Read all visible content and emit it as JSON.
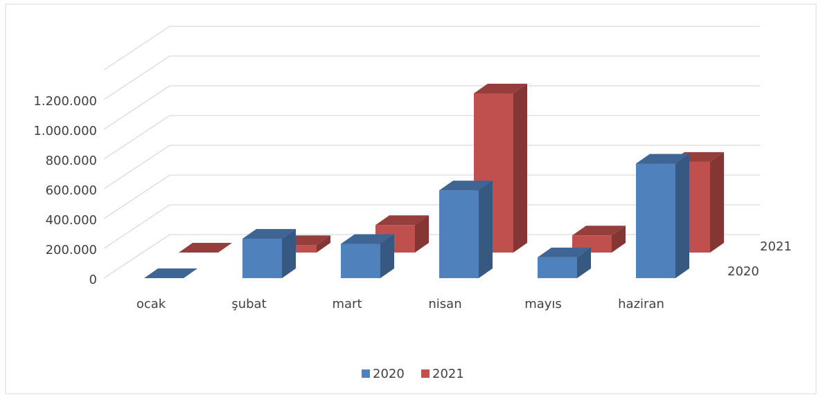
{
  "chart_data": {
    "type": "bar3d",
    "categories": [
      "ocak",
      "şubat",
      "mart",
      "nisan",
      "mayıs",
      "haziran"
    ],
    "series": [
      {
        "name": "2020",
        "color": "#4f81bd",
        "values": [
          0,
          265000,
          230000,
          590000,
          140000,
          770000
        ]
      },
      {
        "name": "2021",
        "color": "#c0504d",
        "values": [
          0,
          50000,
          185000,
          1070000,
          115000,
          610000
        ]
      }
    ],
    "ylim": [
      0,
      1400000
    ],
    "yticks": [
      0,
      {
        "value": 200000,
        "label": "200.000"
      },
      {
        "value": 400000,
        "label": "400.000"
      },
      {
        "value": 600000,
        "label": "600.000"
      },
      {
        "value": 800000,
        "label": "800.000"
      },
      {
        "value": 1000000,
        "label": "1.000.000"
      },
      {
        "value": 1200000,
        "label": "1.200.000"
      }
    ],
    "grid": true,
    "legend": "bottom"
  }
}
